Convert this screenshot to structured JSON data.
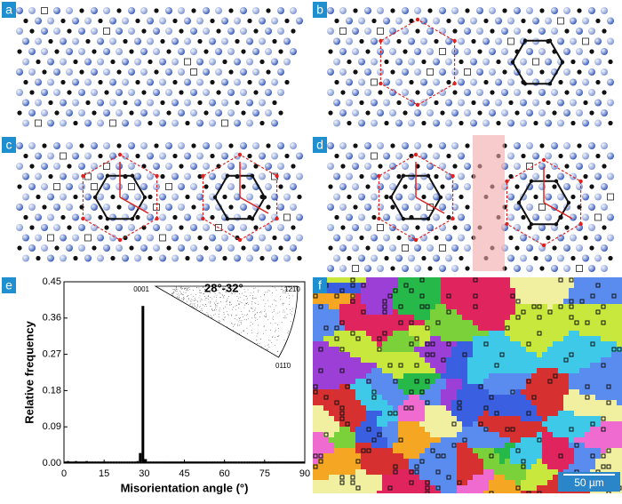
{
  "panel_labels": [
    "a",
    "b",
    "c",
    "d",
    "e",
    "f"
  ],
  "scale_bar": "50 µm",
  "chart_data": {
    "type": "histogram",
    "xlabel": "Misorientation angle (°)",
    "ylabel": "Relative frequency",
    "xlim": [
      0,
      90
    ],
    "ylim": [
      0,
      0.45
    ],
    "xticks": [
      0,
      15,
      30,
      45,
      60,
      75,
      90
    ],
    "yticks": [
      {
        "value": 0,
        "label": "0.00"
      },
      0.09,
      0.18,
      0.27,
      0.36,
      0.45
    ],
    "color": "#000000",
    "bins": [
      0,
      1,
      2,
      3,
      4,
      5,
      6,
      7,
      8,
      9,
      10,
      11,
      12,
      13,
      14,
      15,
      16,
      17,
      18,
      19,
      20,
      21,
      22,
      23,
      24,
      25,
      26,
      27,
      28,
      29,
      30,
      31,
      32,
      33,
      34,
      35,
      36,
      37,
      38,
      39,
      40,
      41,
      42,
      43,
      44,
      45,
      46,
      47,
      48,
      49,
      50,
      51,
      52,
      53,
      54,
      55,
      56,
      57,
      58,
      59,
      60,
      61,
      62,
      63,
      64,
      65,
      66,
      67,
      68,
      69,
      70,
      71,
      72,
      73,
      74,
      75,
      76,
      77,
      78,
      79,
      80,
      81,
      82,
      83,
      84,
      85,
      86,
      87,
      88,
      89,
      90
    ],
    "values": [
      0.004,
      0.005,
      0.004,
      0.004,
      0.005,
      0.004,
      0.004,
      0.004,
      0.005,
      0.004,
      0.004,
      0.004,
      0.004,
      0.004,
      0.004,
      0.004,
      0.004,
      0.004,
      0.004,
      0.004,
      0.004,
      0.004,
      0.004,
      0.004,
      0.004,
      0.004,
      0.004,
      0.005,
      0.025,
      0.39,
      0.01,
      0.004,
      0.004,
      0.004,
      0.004,
      0.004,
      0.004,
      0.004,
      0.004,
      0.004,
      0.004,
      0.004,
      0.004,
      0.004,
      0.004,
      0.004,
      0.004,
      0.004,
      0.004,
      0.004,
      0.004,
      0.004,
      0.004,
      0.004,
      0.004,
      0.004,
      0.004,
      0.004,
      0.004,
      0.004,
      0.004,
      0.004,
      0.004,
      0.004,
      0.004,
      0.004,
      0.004,
      0.004,
      0.004,
      0.004,
      0.004,
      0.004,
      0.004,
      0.004,
      0.004,
      0.004,
      0.004,
      0.004,
      0.004,
      0.004,
      0.004,
      0.004,
      0.004,
      0.004,
      0.004,
      0.004,
      0.004,
      0.004,
      0.004,
      0.004
    ],
    "inset": {
      "title": "28°-32°",
      "labels": [
        "0001",
        "1̄21̄0",
        "011̄0"
      ]
    }
  }
}
